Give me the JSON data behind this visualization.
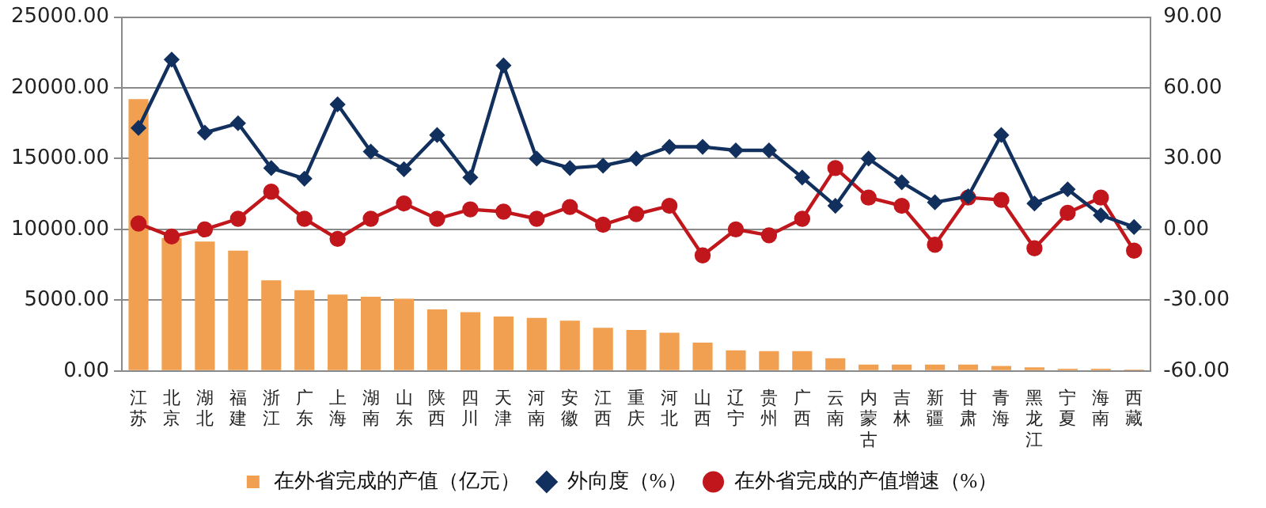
{
  "chart_data": {
    "type": "bar",
    "categories": [
      "江苏",
      "北京",
      "湖北",
      "福建",
      "浙江",
      "广东",
      "上海",
      "湖南",
      "山东",
      "陕西",
      "四川",
      "天津",
      "河南",
      "安徽",
      "江西",
      "重庆",
      "河北",
      "山西",
      "辽宁",
      "贵州",
      "广西",
      "云南",
      "内蒙古",
      "吉林",
      "新疆",
      "甘肃",
      "青海",
      "黑龙江",
      "宁夏",
      "海南",
      "西藏"
    ],
    "series": [
      {
        "name": "在外省完成的产值（亿元）",
        "color": "#f0a050",
        "values": [
          19200,
          9400,
          9150,
          8500,
          6400,
          5700,
          5400,
          5250,
          5100,
          4350,
          4150,
          3850,
          3750,
          3550,
          3050,
          2900,
          2700,
          2000,
          1450,
          1400,
          1400,
          900,
          450,
          450,
          450,
          450,
          350,
          250,
          150,
          150,
          100
        ]
      },
      {
        "name": "外向度（%）",
        "type": "line",
        "axis": "y2",
        "marker": "diamond",
        "color": "#12305e",
        "values": [
          43,
          72,
          41,
          45,
          26,
          21.5,
          53,
          33,
          25.5,
          40,
          22,
          69.5,
          30,
          26,
          27,
          30,
          35,
          35,
          33.5,
          33.5,
          22,
          10,
          30,
          20,
          11.5,
          14,
          40,
          11,
          17,
          6,
          1
        ]
      },
      {
        "name": "在外省完成的产值增速（%）",
        "type": "line",
        "axis": "y2",
        "marker": "circle",
        "color": "#c0161c",
        "values": [
          2.5,
          -3,
          0,
          4.5,
          16,
          4.5,
          -4,
          4.5,
          11,
          4.5,
          8.5,
          7.5,
          4.5,
          9.5,
          2,
          6.5,
          10,
          -11,
          0,
          -2.5,
          4.5,
          26,
          13.5,
          10,
          -6.5,
          13.5,
          12.5,
          -8,
          7,
          13.5,
          -9
        ]
      }
    ],
    "ylim": [
      0,
      25000
    ],
    "yticks": [
      {
        "value": 0,
        "label": "0.00"
      },
      {
        "value": 5000,
        "label": "5000.00"
      },
      {
        "value": 10000,
        "label": "10000.00"
      },
      {
        "value": 15000,
        "label": "15000.00"
      },
      {
        "value": 20000,
        "label": "20000.00"
      },
      {
        "value": 25000,
        "label": "25000.00"
      }
    ],
    "y2lim": [
      -60,
      90
    ],
    "y2ticks": [
      {
        "value": -60,
        "label": "-60.00"
      },
      {
        "value": -30,
        "label": "-30.00"
      },
      {
        "value": 0,
        "label": "0.00"
      },
      {
        "value": 30,
        "label": "30.00"
      },
      {
        "value": 60,
        "label": "60.00"
      },
      {
        "value": 90,
        "label": "90.00"
      }
    ],
    "grid": "y",
    "legend": "bottom"
  }
}
